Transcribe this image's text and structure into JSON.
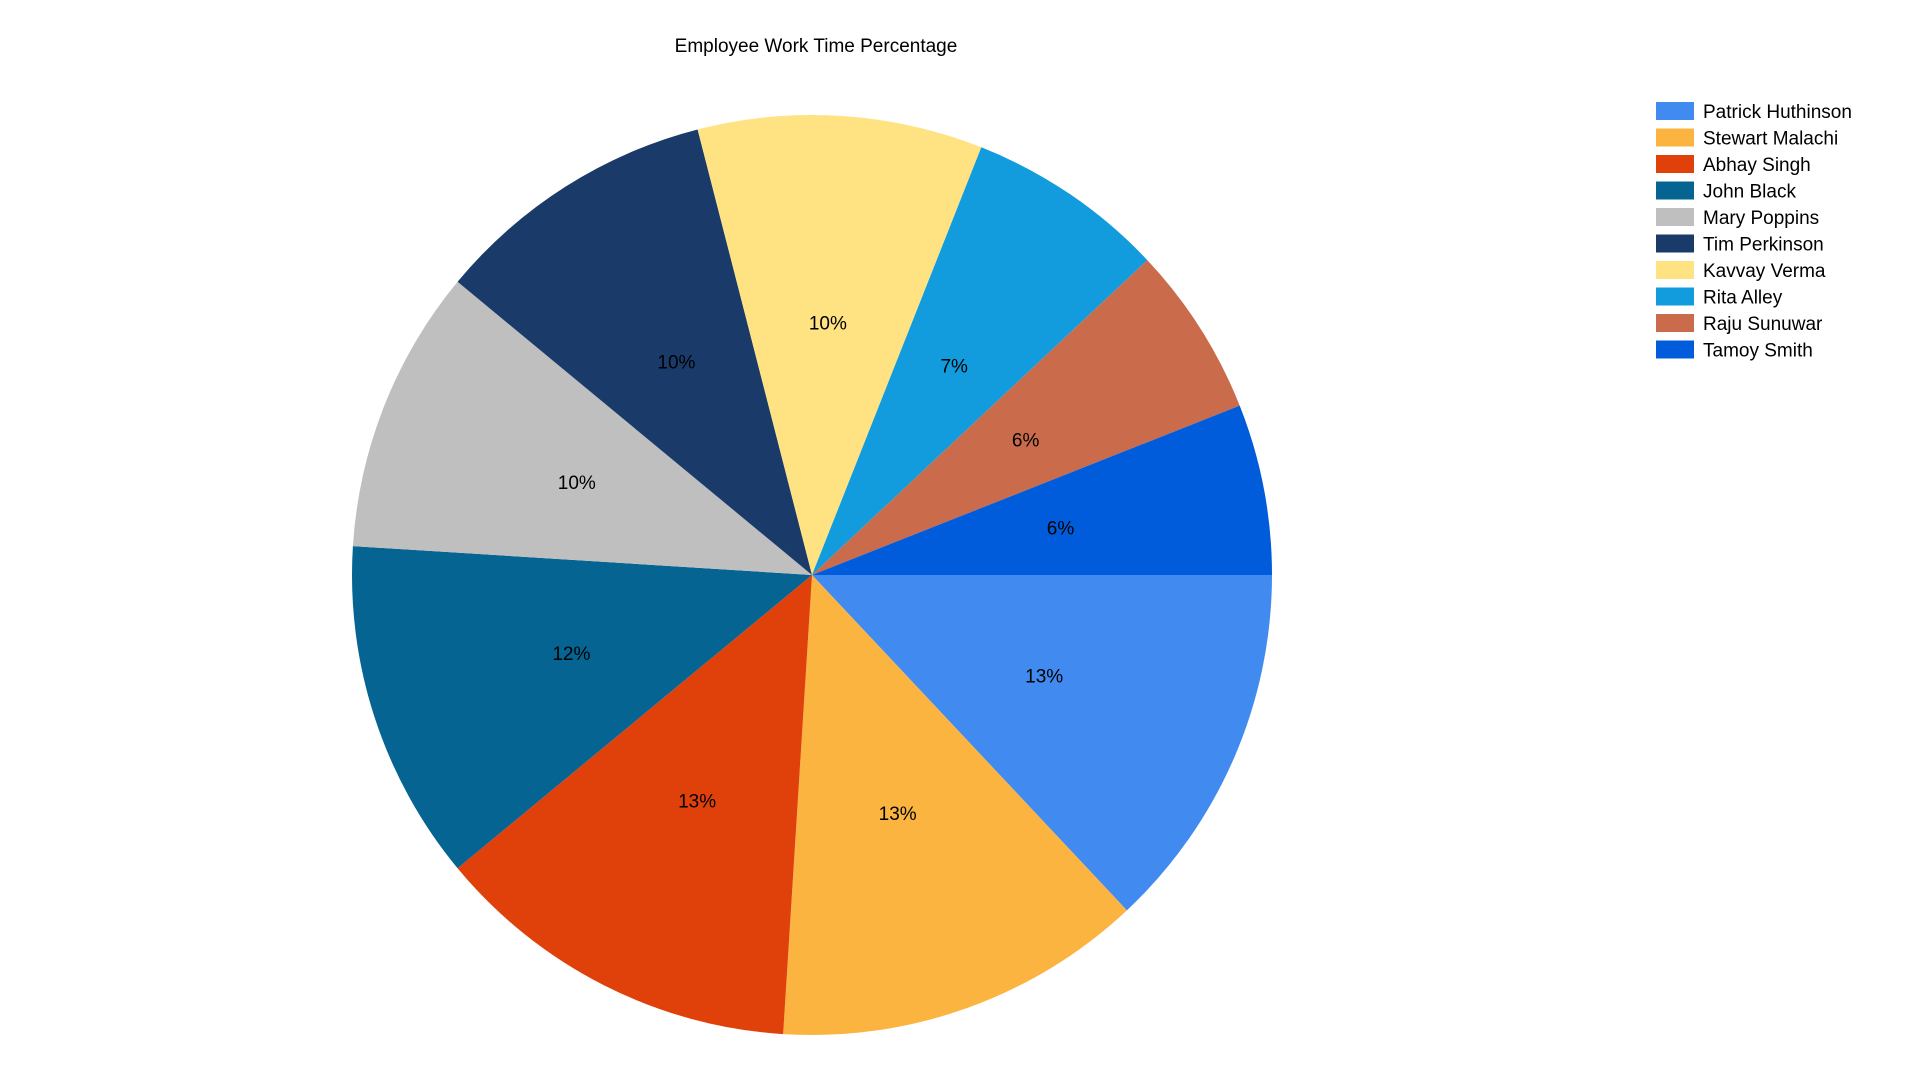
{
  "chart_data": {
    "type": "pie",
    "title": "Employee Work Time Percentage",
    "legend_position": "top-right",
    "start_angle_deg": 0,
    "direction": "clockwise",
    "slices": [
      {
        "name": "Patrick Huthinson",
        "value": 13,
        "label": "13%",
        "color": "#418BF0"
      },
      {
        "name": "Stewart Malachi",
        "value": 13,
        "label": "13%",
        "color": "#FBB440"
      },
      {
        "name": "Abhay Singh",
        "value": 13,
        "label": "13%",
        "color": "#E0400A"
      },
      {
        "name": "John Black",
        "value": 12,
        "label": "12%",
        "color": "#056492"
      },
      {
        "name": "Mary Poppins",
        "value": 10,
        "label": "10%",
        "color": "#BFBFBF"
      },
      {
        "name": "Tim Perkinson",
        "value": 10,
        "label": "10%",
        "color": "#1A3B69"
      },
      {
        "name": "Kavvay Verma",
        "value": 10,
        "label": "10%",
        "color": "#FFE382"
      },
      {
        "name": "Rita Alley",
        "value": 7,
        "label": "7%",
        "color": "#129CDD"
      },
      {
        "name": "Raju Sunuwar",
        "value": 6,
        "label": "6%",
        "color": "#CA6B4B"
      },
      {
        "name": "Tamoy Smith",
        "value": 6,
        "label": "6%",
        "color": "#005CDB"
      }
    ]
  }
}
